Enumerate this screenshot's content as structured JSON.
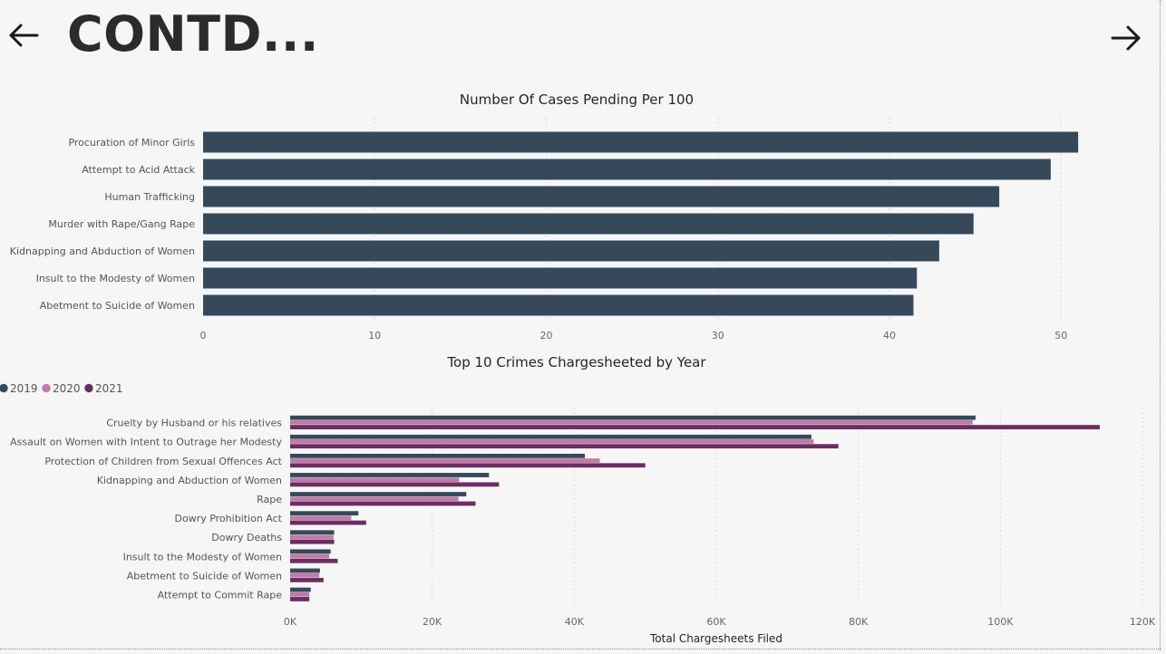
{
  "header": {
    "title": "CONTD...",
    "back_icon": "arrow-left-icon",
    "next_icon": "arrow-right-icon"
  },
  "colors": {
    "bar": "#36495a",
    "series_2019": "#36495a",
    "series_2020": "#c27aa8",
    "series_2021": "#6a2f60"
  },
  "chart_data": [
    {
      "type": "bar",
      "orientation": "horizontal",
      "title": "Number Of Cases Pending Per 100",
      "categories": [
        "Procuration of Minor Girls",
        "Attempt to Acid Attack",
        "Human Trafficking",
        "Murder with Rape/Gang Rape",
        "Kidnapping and Abduction of Women",
        "Insult to the Modesty of Women",
        "Abetment to Suicide of Women"
      ],
      "values": [
        51.0,
        49.4,
        46.4,
        44.9,
        42.9,
        41.6,
        41.4
      ],
      "xlim": [
        0,
        53
      ],
      "ticks": [
        0,
        10,
        20,
        30,
        40,
        50
      ],
      "tick_labels": [
        "0",
        "10",
        "20",
        "30",
        "40",
        "50"
      ],
      "grid": true
    },
    {
      "type": "bar",
      "orientation": "horizontal",
      "title": "Top 10 Crimes Chargesheeted by Year",
      "xlabel": "Total Chargesheets Filed",
      "legend_position": "top-left",
      "categories": [
        "Cruelty by Husband or his relatives",
        "Assault on Women with Intent to Outrage her Modesty",
        "Protection of Children from Sexual Offences Act",
        "Kidnapping and Abduction of Women",
        "Rape",
        "Dowry Prohibition Act",
        "Dowry Deaths",
        "Insult to the Modesty of Women",
        "Abetment to Suicide of Women",
        "Attempt to Commit Rape"
      ],
      "series": [
        {
          "name": "2019",
          "values": [
            96500,
            73400,
            41500,
            28000,
            24800,
            9600,
            6200,
            5700,
            4200,
            2900
          ]
        },
        {
          "name": "2020",
          "values": [
            96100,
            73700,
            43600,
            23800,
            23700,
            8600,
            6100,
            5500,
            4100,
            2700
          ]
        },
        {
          "name": "2021",
          "values": [
            114000,
            77200,
            50000,
            29400,
            26100,
            10700,
            6200,
            6700,
            4700,
            2700
          ]
        }
      ],
      "xlim": [
        0,
        120000
      ],
      "ticks": [
        0,
        20000,
        40000,
        60000,
        80000,
        100000,
        120000
      ],
      "tick_labels": [
        "0K",
        "20K",
        "40K",
        "60K",
        "80K",
        "100K",
        "120K"
      ],
      "grid": true
    }
  ]
}
